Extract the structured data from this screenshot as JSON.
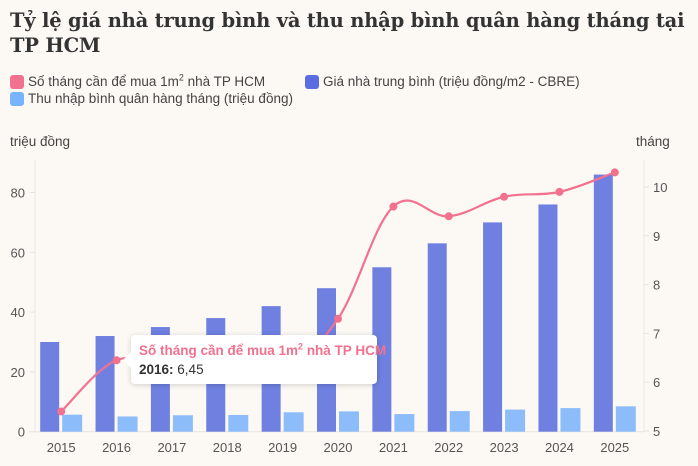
{
  "title": "Tỷ lệ giá nhà trung bình và thu nhập bình quân hàng tháng tại TP HCM",
  "legend": [
    {
      "label_pre": "Số tháng cần để mua 1m",
      "label_sup": "2",
      "label_post": " nhà TP HCM",
      "color": "#f2718f",
      "series": "months"
    },
    {
      "label": "Giá nhà trung bình (triệu đồng/m2 - CBRE)",
      "color": "#5b6de0",
      "series": "price"
    },
    {
      "label": "Thu nhập bình quân hàng tháng (triệu đồng)",
      "color": "#78b4fb",
      "series": "income"
    }
  ],
  "tooltip": {
    "title_pre": "Số tháng cần để mua 1m",
    "title_sup": "2",
    "title_post": " nhà TP HCM",
    "year": "2016:",
    "value": "6,45"
  },
  "chart_data": {
    "type": "bar",
    "title": "Tỷ lệ giá nhà trung bình và thu nhập bình quân hàng tháng tại TP HCM",
    "categories": [
      "2015",
      "2016",
      "2017",
      "2018",
      "2019",
      "2020",
      "2021",
      "2022",
      "2023",
      "2024",
      "2025"
    ],
    "ylabel": "triệu đồng",
    "y2label": "tháng",
    "ylim": [
      0,
      90
    ],
    "yticks": [
      0,
      20,
      40,
      60,
      80
    ],
    "y2lim": [
      5,
      10.5
    ],
    "y2ticks": [
      5,
      6,
      7,
      8,
      9,
      10
    ],
    "grid": false,
    "legend_position": "top-left",
    "series": [
      {
        "name": "Giá nhà trung bình (triệu đồng/m2 - CBRE)",
        "type": "bar",
        "axis": "left",
        "color": "#6f80e0",
        "values": [
          30,
          32,
          35,
          38,
          42,
          48,
          55,
          63,
          70,
          76,
          86
        ]
      },
      {
        "name": "Thu nhập bình quân hàng tháng (triệu đồng)",
        "type": "bar",
        "axis": "left",
        "color": "#8cbdfa",
        "values": [
          5.7,
          5.1,
          5.5,
          5.6,
          6.5,
          6.8,
          5.9,
          6.9,
          7.4,
          7.9,
          8.5
        ]
      },
      {
        "name": "Số tháng cần để mua 1m² nhà TP HCM",
        "type": "line",
        "axis": "right",
        "color": "#f2718f",
        "values": [
          5.4,
          6.45,
          6.3,
          6.4,
          6.3,
          7.3,
          9.6,
          9.4,
          9.8,
          9.9,
          10.3
        ]
      }
    ]
  }
}
